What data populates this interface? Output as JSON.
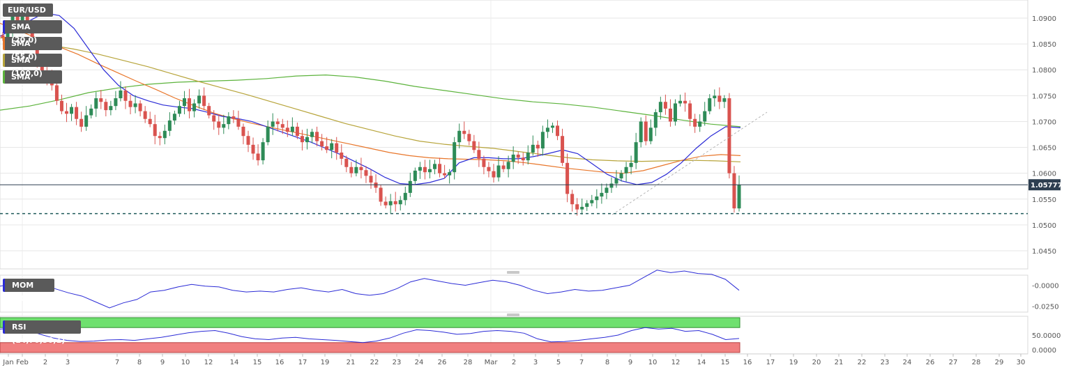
{
  "symbol": "EUR/USD",
  "indicators": [
    {
      "label": "SMA (20,0)",
      "color": "#2b2bd6"
    },
    {
      "label": "SMA (55,0)",
      "color": "#e8762a"
    },
    {
      "label": "SMA (100,0)",
      "color": "#b7a43a"
    },
    {
      "label": "SMA (200,0)",
      "color": "#5cb33c"
    }
  ],
  "colors": {
    "up": "#2e8b57",
    "down": "#d9534f",
    "grid": "#e6e6e6",
    "axis_text": "#555555",
    "price_line": "#2d3e50"
  },
  "chart_data": {
    "type": "candlestick",
    "price_ticks": [
      "1.0900",
      "1.0850",
      "1.0800",
      "1.0750",
      "1.0700",
      "1.0650",
      "1.0600",
      "1.0550",
      "1.0500",
      "1.0450"
    ],
    "ylim": [
      1.0415,
      1.0935
    ],
    "last_price": "1.05777",
    "support_level": 1.0522,
    "x_labels": [
      "Jan",
      "Feb",
      "2",
      "3",
      "7",
      "8",
      "9",
      "10",
      "12",
      "14",
      "15",
      "16",
      "17",
      "19",
      "21",
      "22",
      "23",
      "24",
      "26",
      "28",
      "Mar",
      "2",
      "3",
      "5",
      "7",
      "8",
      "9",
      "10",
      "12",
      "14",
      "15",
      "16",
      "17",
      "19",
      "20",
      "21",
      "22",
      "23",
      "24",
      "26",
      "27",
      "28",
      "29",
      "30"
    ],
    "candles_close": [
      1.0862,
      1.0878,
      1.0906,
      1.0895,
      1.091,
      1.088,
      1.0855,
      1.082,
      1.0798,
      1.0782,
      1.077,
      1.074,
      1.072,
      1.0715,
      1.0728,
      1.0705,
      1.069,
      1.0712,
      1.0725,
      1.0745,
      1.0738,
      1.0722,
      1.073,
      1.0745,
      1.076,
      1.074,
      1.0728,
      1.0735,
      1.072,
      1.0705,
      1.0695,
      1.0672,
      1.0668,
      1.0682,
      1.0702,
      1.0715,
      1.073,
      1.0745,
      1.072,
      1.0735,
      1.075,
      1.073,
      1.0712,
      1.07,
      1.0688,
      1.0695,
      1.071,
      1.0705,
      1.069,
      1.0672,
      1.0655,
      1.0638,
      1.0625,
      1.066,
      1.069,
      1.07,
      1.0695,
      1.0688,
      1.068,
      1.069,
      1.0672,
      1.066,
      1.067,
      1.068,
      1.0662,
      1.0652,
      1.0645,
      1.0658,
      1.064,
      1.0628,
      1.0612,
      1.06,
      1.0612,
      1.0606,
      1.0595,
      1.0582,
      1.0572,
      1.0545,
      1.0538,
      1.0546,
      1.054,
      1.0548,
      1.0562,
      1.0585,
      1.0605,
      1.0612,
      1.0602,
      1.0608,
      1.0618,
      1.06,
      1.0596,
      1.0602,
      1.066,
      1.0682,
      1.0676,
      1.0662,
      1.0645,
      1.0628,
      1.0612,
      1.0604,
      1.0592,
      1.0615,
      1.0608,
      1.0622,
      1.0636,
      1.063,
      1.0625,
      1.064,
      1.0655,
      1.0648,
      1.068,
      1.0688,
      1.0692,
      1.0672,
      1.062,
      1.056,
      1.054,
      1.053,
      1.0535,
      1.0542,
      1.0548,
      1.0555,
      1.0562,
      1.0572,
      1.058,
      1.059,
      1.06,
      1.0612,
      1.062,
      1.066,
      1.07,
      1.0662,
      1.0688,
      1.0718,
      1.0738,
      1.0725,
      1.07,
      1.0735,
      1.074,
      1.0735,
      1.0705,
      1.069,
      1.07,
      1.072,
      1.0745,
      1.075,
      1.0738,
      1.0745,
      1.06,
      1.0532,
      1.05777
    ],
    "sma20": [
      1.0865,
      1.088,
      1.0895,
      1.091,
      1.0905,
      1.088,
      1.084,
      1.08,
      1.077,
      1.075,
      1.074,
      1.0732,
      1.0728,
      1.0725,
      1.0718,
      1.071,
      1.0706,
      1.07,
      1.069,
      1.068,
      1.067,
      1.066,
      1.0648,
      1.0636,
      1.0622,
      1.0608,
      1.0592,
      1.058,
      1.0578,
      1.0582,
      1.059,
      1.062,
      1.063,
      1.063,
      1.0628,
      1.0628,
      1.0632,
      1.0638,
      1.0645,
      1.0638,
      1.0618,
      1.0598,
      1.0585,
      1.0578,
      1.0582,
      1.0598,
      1.062,
      1.0648,
      1.0672,
      1.069,
      1.0688
    ],
    "sma55": [
      1.089,
      1.0875,
      1.086,
      1.0845,
      1.083,
      1.0812,
      1.0795,
      1.0778,
      1.0762,
      1.0745,
      1.073,
      1.0716,
      1.0705,
      1.0696,
      1.0688,
      1.068,
      1.0672,
      1.0664,
      1.0656,
      1.0648,
      1.064,
      1.0634,
      1.063,
      1.0628,
      1.0627,
      1.0626,
      1.0624,
      1.062,
      1.0615,
      1.061,
      1.0606,
      1.0602,
      1.06,
      1.0605,
      1.0615,
      1.0625,
      1.0633,
      1.0636,
      1.0634
    ],
    "sma100": [
      1.0862,
      1.0855,
      1.0848,
      1.084,
      1.083,
      1.0818,
      1.0806,
      1.0792,
      1.0778,
      1.0765,
      1.0752,
      1.0738,
      1.0724,
      1.071,
      1.0696,
      1.0684,
      1.0672,
      1.0662,
      1.0656,
      1.0652,
      1.0648,
      1.0642,
      1.0636,
      1.063,
      1.0626,
      1.0624,
      1.0623,
      1.0624,
      1.0625,
      1.0624,
      1.0622
    ],
    "sma200": [
      1.0722,
      1.073,
      1.0742,
      1.0756,
      1.0765,
      1.0772,
      1.0776,
      1.0778,
      1.078,
      1.0783,
      1.0788,
      1.079,
      1.0786,
      1.0778,
      1.0768,
      1.076,
      1.0752,
      1.0744,
      1.0738,
      1.0734,
      1.0728,
      1.072,
      1.0712,
      1.0703,
      1.0695,
      1.069
    ],
    "mom": {
      "label": "MOM (20)",
      "ticks": [
        "-0.0000",
        "-0.0250"
      ],
      "values": [
        -0.001,
        0.0015,
        0.0008,
        0.001,
        -0.004,
        -0.009,
        -0.013,
        -0.02,
        -0.027,
        -0.021,
        -0.017,
        -0.008,
        -0.006,
        -0.002,
        0.001,
        -0.001,
        -0.002,
        -0.006,
        -0.008,
        -0.007,
        -0.008,
        -0.005,
        -0.003,
        -0.006,
        -0.008,
        -0.005,
        -0.01,
        -0.012,
        -0.01,
        -0.004,
        0.004,
        0.008,
        0.005,
        0.002,
        0.0,
        0.003,
        0.006,
        0.004,
        0.0,
        -0.006,
        -0.01,
        -0.008,
        -0.005,
        -0.007,
        -0.006,
        -0.003,
        0.0,
        0.009,
        0.018,
        0.015,
        0.017,
        0.014,
        0.013,
        0.007,
        -0.006
      ]
    },
    "rsi": {
      "label": "RSI (14,70,30,1)",
      "ticks": [
        "50.0000",
        "0.0000"
      ],
      "overbought": 70,
      "oversold": 30,
      "values": [
        66,
        68,
        64,
        52,
        42,
        36,
        33,
        34,
        37,
        38,
        36,
        40,
        44,
        50,
        56,
        60,
        62,
        55,
        46,
        40,
        38,
        42,
        44,
        40,
        38,
        36,
        33,
        30,
        34,
        42,
        55,
        64,
        62,
        58,
        52,
        54,
        60,
        62,
        60,
        55,
        40,
        32,
        33,
        36,
        40,
        44,
        50,
        62,
        70,
        66,
        68,
        60,
        62,
        52,
        38,
        41
      ]
    }
  }
}
